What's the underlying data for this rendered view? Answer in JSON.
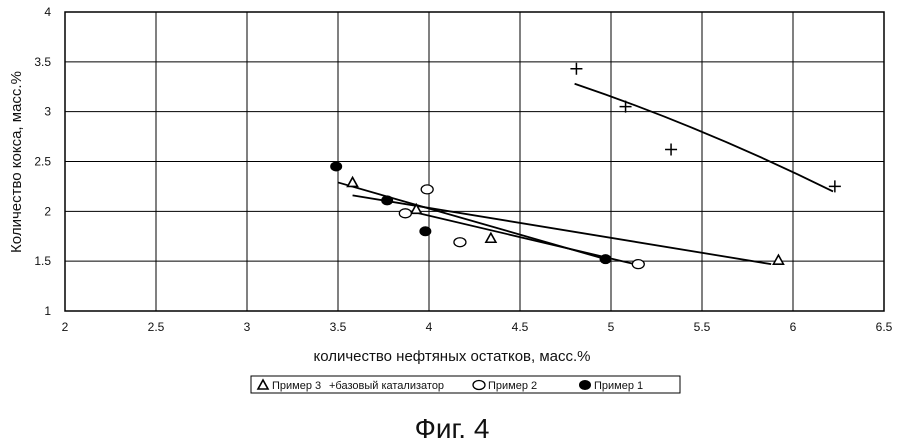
{
  "chart_data": {
    "type": "scatter",
    "title": "",
    "xlabel": "количество нефтяных остатков, масс.%",
    "ylabel": "Количество кокса, масс.%",
    "xlim": [
      2,
      6.5
    ],
    "ylim": [
      1,
      4
    ],
    "x_ticks": [
      2,
      2.5,
      3,
      3.5,
      4,
      4.5,
      5,
      5.5,
      6,
      6.5
    ],
    "y_ticks": [
      1,
      1.5,
      2,
      2.5,
      3,
      3.5,
      4
    ],
    "x_tick_labels": [
      "2",
      "2.5",
      "3",
      "3.5",
      "4",
      "4.5",
      "5",
      "5.5",
      "6",
      "6.5"
    ],
    "y_tick_labels": [
      "1",
      "1.5",
      "2",
      "2.5",
      "3",
      "3.5",
      "4"
    ],
    "grid": true,
    "legend_position": "bottom-center",
    "series": [
      {
        "name": "Пример 3",
        "marker": "triangle",
        "x": [
          3.58,
          3.93,
          4.34,
          5.92
        ],
        "y": [
          2.29,
          2.02,
          1.73,
          1.51
        ],
        "trend": [
          [
            3.58,
            2.16
          ],
          [
            5.88,
            1.47
          ]
        ]
      },
      {
        "name": "+базовый катализатор",
        "marker": "plus",
        "x": [
          4.81,
          5.08,
          5.33,
          6.23
        ],
        "y": [
          3.43,
          3.05,
          2.62,
          2.25
        ],
        "trend": [
          [
            4.8,
            3.28
          ],
          [
            6.22,
            2.2
          ]
        ]
      },
      {
        "name": "Пример 2",
        "marker": "circle-open",
        "x": [
          3.87,
          3.99,
          4.17,
          5.15
        ],
        "y": [
          1.98,
          2.22,
          1.69,
          1.47
        ],
        "trend": [
          [
            3.9,
            2.0
          ],
          [
            5.13,
            1.47
          ]
        ]
      },
      {
        "name": "Пример 1",
        "marker": "circle-filled",
        "x": [
          3.49,
          3.77,
          3.98,
          4.97
        ],
        "y": [
          2.45,
          2.11,
          1.8,
          1.52
        ],
        "trend": [
          [
            3.5,
            2.29
          ],
          [
            4.97,
            1.52
          ]
        ]
      }
    ]
  },
  "figure_caption": "Фиг. 4"
}
